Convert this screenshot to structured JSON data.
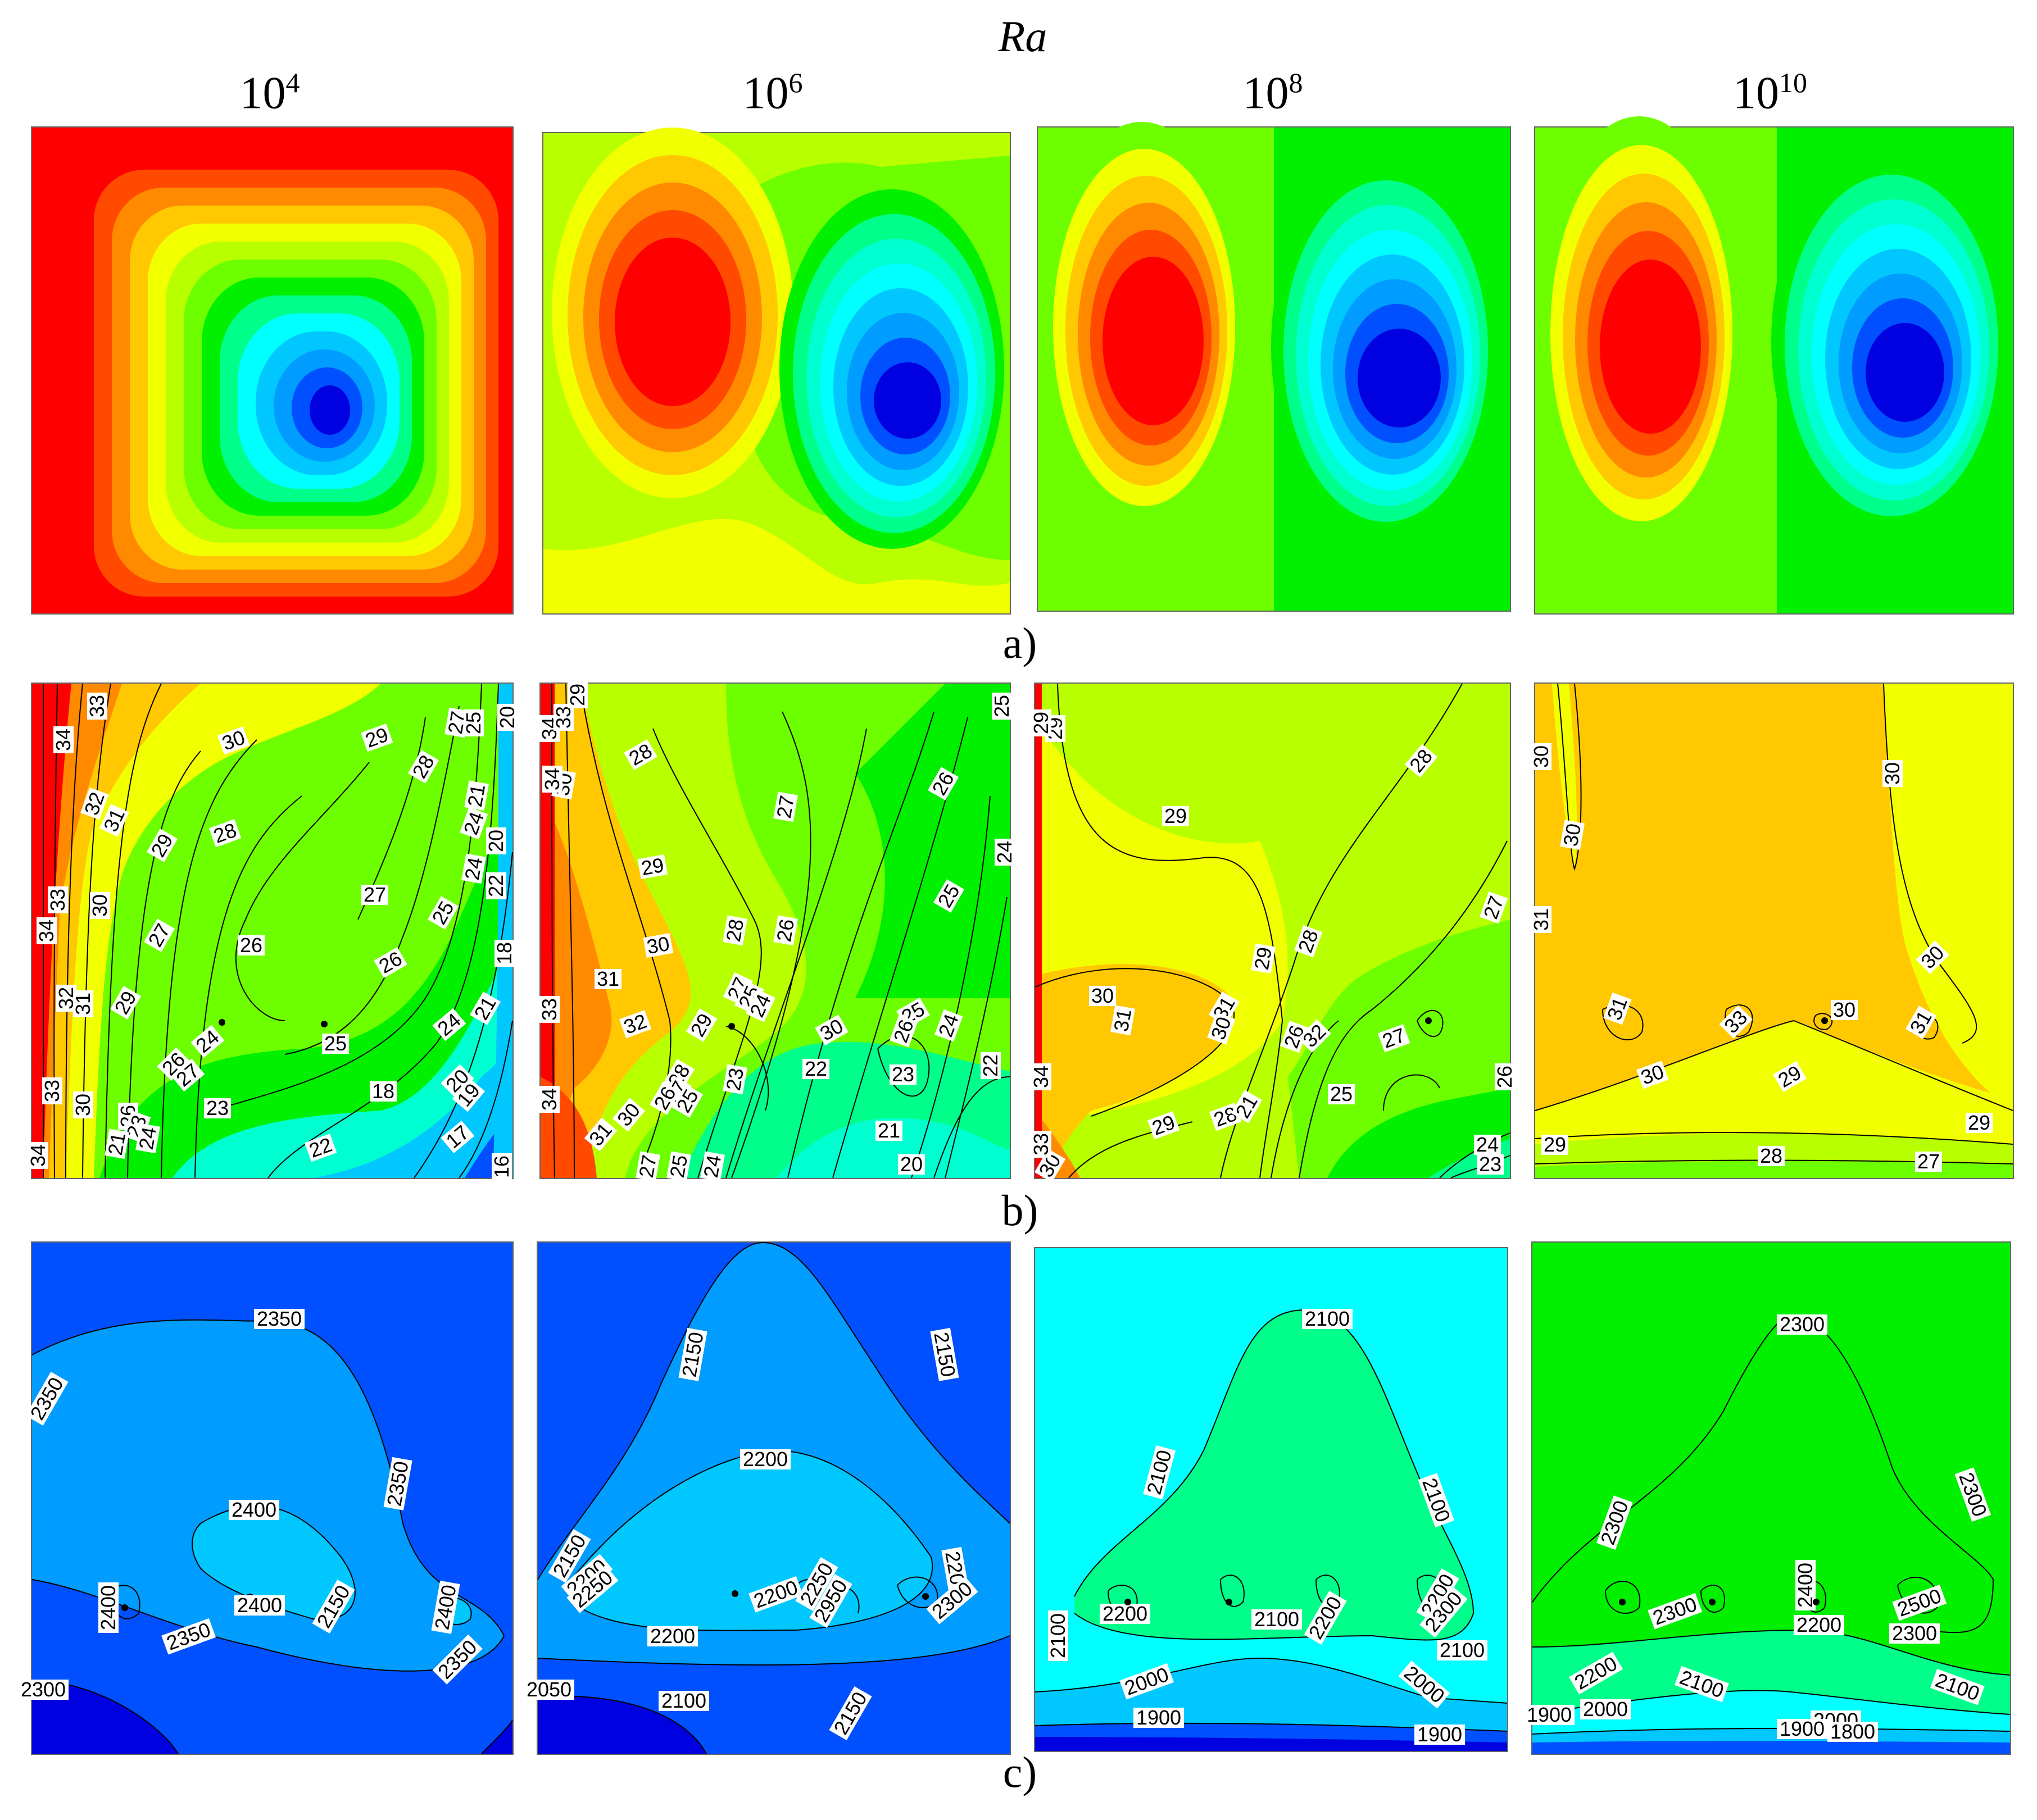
{
  "figure": {
    "ra_title": "Ra",
    "columns": [
      {
        "base": "10",
        "exp": "4"
      },
      {
        "base": "10",
        "exp": "6"
      },
      {
        "base": "10",
        "exp": "8"
      },
      {
        "base": "10",
        "exp": "10"
      }
    ],
    "row_labels": [
      "a)",
      "b)",
      "c)"
    ]
  },
  "colors": {
    "red": "#ff0000",
    "orange_red": "#ff4a00",
    "orange": "#ff8a00",
    "gold": "#ffc800",
    "yellow": "#f2ff00",
    "yellow_green": "#b8ff00",
    "light_green": "#6dff00",
    "green": "#00f000",
    "spring": "#00ff8a",
    "aqua": "#00ffd0",
    "cyan": "#00ffff",
    "sky": "#00c8ff",
    "azure": "#009cff",
    "blue": "#0050ff",
    "deep_blue": "#0000e0"
  },
  "chart_data": [
    {
      "type": "heatmap",
      "row": "a)",
      "description_field": "stream function contours",
      "panels": [
        {
          "ra": "10^4",
          "levels": [
            "red",
            "orange_red",
            "orange",
            "gold",
            "yellow",
            "yellow_green",
            "light_green",
            "green",
            "spring",
            "cyan",
            "sky",
            "azure",
            "blue",
            "deep_blue"
          ]
        },
        {
          "ra": "10^6",
          "levels": [
            "yellow_green",
            "yellow",
            "gold",
            "orange",
            "orange_red",
            "red",
            "light_green",
            "green",
            "spring",
            "cyan",
            "sky",
            "azure",
            "blue",
            "deep_blue"
          ]
        },
        {
          "ra": "10^8",
          "levels": [
            "green",
            "light_green",
            "yellow",
            "gold",
            "orange",
            "orange_red",
            "red",
            "spring",
            "cyan",
            "sky",
            "azure",
            "blue",
            "deep_blue"
          ]
        },
        {
          "ra": "10^10",
          "levels": [
            "green",
            "light_green",
            "yellow",
            "gold",
            "orange",
            "orange_red",
            "red",
            "spring",
            "cyan",
            "sky",
            "azure",
            "blue",
            "deep_blue"
          ]
        }
      ]
    },
    {
      "type": "heatmap",
      "row": "b)",
      "panels": [
        {
          "ra": "10^4",
          "contour_labels": [
            "34",
            "33",
            "30",
            "29",
            "27",
            "25",
            "20",
            "22",
            "21",
            "18",
            "32",
            "31",
            "28",
            "26",
            "24",
            "23",
            "19",
            "17",
            "16"
          ]
        },
        {
          "ra": "10^6",
          "contour_labels": [
            "34",
            "33",
            "30",
            "29",
            "28",
            "27",
            "26",
            "25",
            "24",
            "23",
            "22",
            "21",
            "20",
            "31",
            "32"
          ]
        },
        {
          "ra": "10^8",
          "contour_labels": [
            "29",
            "28",
            "27",
            "30",
            "31",
            "32",
            "26",
            "25",
            "24",
            "23",
            "21"
          ]
        },
        {
          "ra": "10^10",
          "contour_labels": [
            "30",
            "31",
            "33",
            "29",
            "28",
            "27"
          ]
        }
      ]
    },
    {
      "type": "heatmap",
      "row": "c)",
      "panels": [
        {
          "ra": "10^4",
          "contour_labels": [
            "2350",
            "2400",
            "2150",
            "2300"
          ]
        },
        {
          "ra": "10^6",
          "contour_labels": [
            "2150",
            "2200",
            "2250",
            "2950",
            "2100",
            "2050",
            "2300"
          ]
        },
        {
          "ra": "10^8",
          "contour_labels": [
            "2100",
            "2200",
            "2300",
            "2000",
            "1900"
          ]
        },
        {
          "ra": "10^10",
          "contour_labels": [
            "2300",
            "2400",
            "2500",
            "2200",
            "2100",
            "2000",
            "1900",
            "1800"
          ]
        }
      ]
    }
  ]
}
